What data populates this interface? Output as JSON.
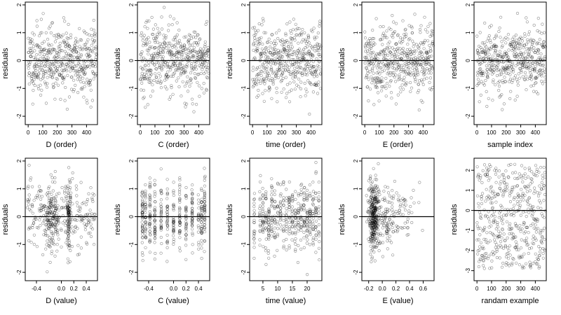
{
  "chart_data": [
    {
      "type": "scatter",
      "xlabel": "D (order)",
      "ylabel": "residuals",
      "xticks": [
        0,
        100,
        200,
        300,
        400
      ],
      "xlim": [
        -20,
        475
      ],
      "yticks": [
        -2,
        -1,
        0,
        1,
        2
      ],
      "ylim": [
        -2.3,
        2.1
      ],
      "hline": 0,
      "n": 470,
      "x_kind": "index",
      "pattern": "uniform",
      "seed": 11
    },
    {
      "type": "scatter",
      "xlabel": "C (order)",
      "ylabel": "residuals",
      "xticks": [
        0,
        100,
        200,
        300,
        400
      ],
      "xlim": [
        -20,
        475
      ],
      "yticks": [
        -2,
        -1,
        0,
        1,
        2
      ],
      "ylim": [
        -2.3,
        2.1
      ],
      "hline": 0,
      "n": 470,
      "x_kind": "index",
      "pattern": "uniform",
      "seed": 23
    },
    {
      "type": "scatter",
      "xlabel": "time (order)",
      "ylabel": "residuals",
      "xticks": [
        0,
        100,
        200,
        300,
        400
      ],
      "xlim": [
        -20,
        475
      ],
      "yticks": [
        -2,
        -1,
        0,
        1,
        2
      ],
      "ylim": [
        -2.3,
        2.1
      ],
      "hline": 0,
      "n": 470,
      "x_kind": "index",
      "pattern": "uniform",
      "seed": 37
    },
    {
      "type": "scatter",
      "xlabel": "E (order)",
      "ylabel": "residuals",
      "xticks": [
        0,
        100,
        200,
        300,
        400
      ],
      "xlim": [
        -20,
        475
      ],
      "yticks": [
        -2,
        -1,
        0,
        1,
        2
      ],
      "ylim": [
        -2.3,
        2.1
      ],
      "hline": 0,
      "n": 470,
      "x_kind": "index",
      "pattern": "uniform",
      "seed": 41
    },
    {
      "type": "scatter",
      "xlabel": "sample index",
      "ylabel": "residuals",
      "xticks": [
        0,
        100,
        200,
        300,
        400
      ],
      "xlim": [
        -20,
        475
      ],
      "yticks": [
        -2,
        -1,
        0,
        1,
        2
      ],
      "ylim": [
        -2.3,
        2.1
      ],
      "hline": 0,
      "n": 470,
      "x_kind": "index",
      "pattern": "uniform",
      "seed": 53
    },
    {
      "type": "scatter",
      "xlabel": "D (value)",
      "ylabel": "residuals",
      "xticks": [
        -0.4,
        0,
        0.2,
        0.4
      ],
      "xtick_labels": [
        "-0.4",
        "0.0",
        "0.2",
        "0.4"
      ],
      "xlim": [
        -0.58,
        0.58
      ],
      "yticks": [
        -2,
        -1,
        0,
        1,
        2
      ],
      "ylim": [
        -2.3,
        2.1
      ],
      "hline": 0,
      "n": 470,
      "x_kind": "value",
      "x_range": [
        -0.55,
        0.55
      ],
      "pattern": "clusters",
      "clusters": [
        -0.15,
        0.12
      ],
      "seed": 61
    },
    {
      "type": "scatter",
      "xlabel": "C (value)",
      "ylabel": "residuals",
      "xticks": [
        -0.4,
        0,
        0.2,
        0.4
      ],
      "xtick_labels": [
        "-0.4",
        "0.0",
        "0.2",
        "0.4"
      ],
      "xlim": [
        -0.58,
        0.58
      ],
      "yticks": [
        -2,
        -1,
        0,
        1,
        2
      ],
      "ylim": [
        -2.3,
        2.1
      ],
      "hline": 0,
      "n": 470,
      "x_kind": "value",
      "x_range": [
        -0.5,
        0.5
      ],
      "pattern": "columns",
      "columns": [
        -0.5,
        -0.45,
        -0.38,
        -0.3,
        -0.2,
        -0.1,
        0,
        0.1,
        0.2,
        0.3,
        0.4,
        0.45,
        0.5
      ],
      "seed": 71
    },
    {
      "type": "scatter",
      "xlabel": "time (value)",
      "ylabel": "residuals",
      "xticks": [
        5,
        10,
        15,
        20
      ],
      "xlim": [
        0.5,
        25
      ],
      "yticks": [
        -2,
        -1,
        0,
        1,
        2
      ],
      "ylim": [
        -2.3,
        2.1
      ],
      "hline": 0,
      "n": 470,
      "x_kind": "value",
      "x_range": [
        1,
        24
      ],
      "pattern": "columns",
      "columns": [
        2,
        4,
        5,
        6,
        7,
        8,
        9,
        10,
        11,
        12,
        13,
        14,
        15,
        16,
        17,
        18,
        19,
        20,
        21,
        22,
        23,
        24
      ],
      "seed": 83
    },
    {
      "type": "scatter",
      "xlabel": "E (value)",
      "ylabel": "residuals",
      "xticks": [
        -0.2,
        0,
        0.2,
        0.4,
        0.6
      ],
      "xtick_labels": [
        "-0.2",
        "0.0",
        "0.2",
        "0.4",
        "0.6"
      ],
      "xlim": [
        -0.3,
        0.76
      ],
      "yticks": [
        -2,
        -1,
        0,
        1,
        2
      ],
      "ylim": [
        -2.3,
        2.1
      ],
      "hline": 0,
      "n": 470,
      "x_kind": "value",
      "x_range": [
        -0.25,
        0.72
      ],
      "pattern": "skew",
      "cluster": -0.13,
      "seed": 97
    },
    {
      "type": "scatter",
      "xlabel": "randam example",
      "ylabel": "residuals",
      "xticks": [
        0,
        100,
        200,
        300,
        400
      ],
      "xlim": [
        -20,
        475
      ],
      "yticks": [
        -3,
        -2,
        -1,
        0,
        1,
        2
      ],
      "ylim": [
        -3.5,
        2.6
      ],
      "hline": 0,
      "n": 470,
      "x_kind": "index",
      "pattern": "uniform_wide",
      "seed": 101
    }
  ]
}
